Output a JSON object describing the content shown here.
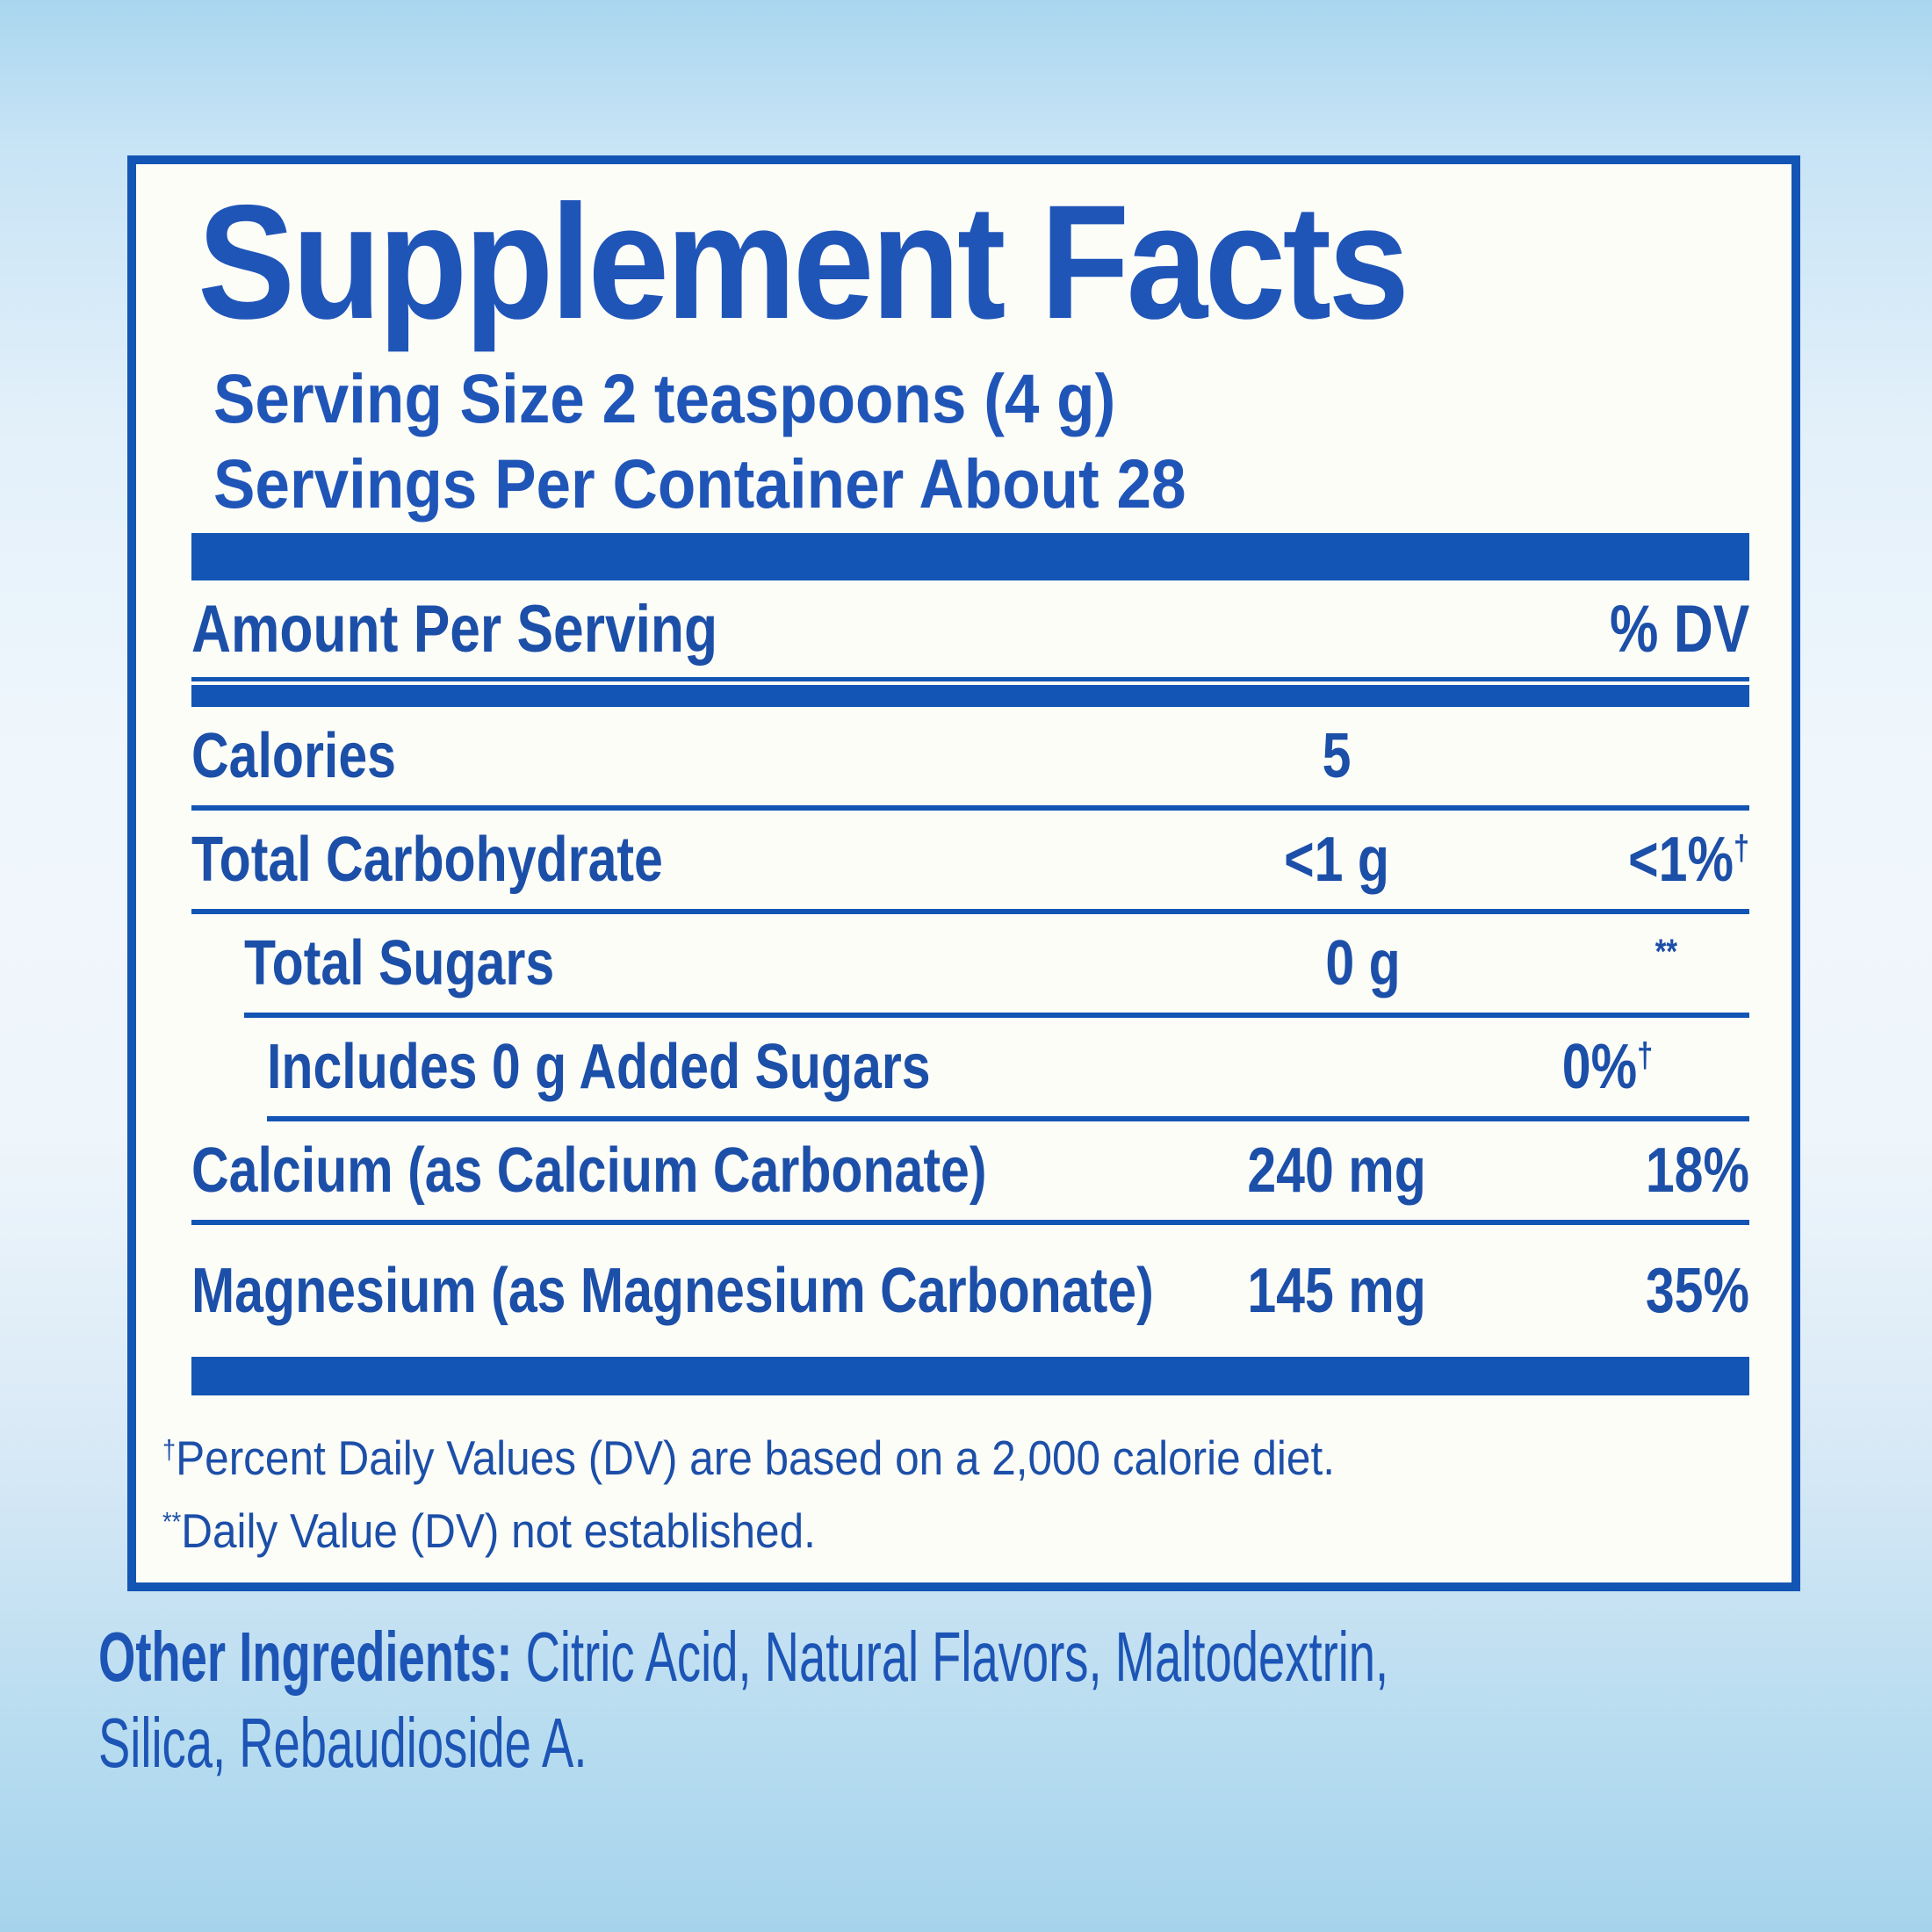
{
  "colors": {
    "accent_blue": "#1355b4",
    "text_blue": "#1c4fa8",
    "title_blue": "#2055b8",
    "panel_background": "#fdfdf8",
    "page_background_top": "#a9d6ef",
    "page_background_middle": "#f0f7fc",
    "page_background_bottom": "#a6d3ec"
  },
  "panel": {
    "title": "Supplement Facts",
    "serving_size_line": "Serving Size 2 teaspoons (4 g)",
    "servings_per_container_line": "Servings Per Container About 28",
    "header": {
      "amount_per_serving": "Amount Per Serving",
      "percent_dv": "% DV"
    },
    "rows": [
      {
        "label": "Calories",
        "amount": "5",
        "dv": "",
        "indent": 0
      },
      {
        "label": "Total Carbohydrate",
        "amount": "<1 g",
        "dv": "<1%",
        "dv_sup": "†",
        "indent": 0
      },
      {
        "label": "Total Sugars",
        "amount": "0 g",
        "dv": "",
        "dv_sup": "**",
        "indent": 1
      },
      {
        "label": "Includes 0 g Added Sugars",
        "amount": "",
        "dv": "0%",
        "dv_sup": "†",
        "indent": 2
      },
      {
        "label": "Calcium (as Calcium Carbonate)",
        "amount": "240 mg",
        "dv": "18%",
        "indent": 0
      },
      {
        "label": "Magnesium (as Magnesium Carbonate)",
        "amount": "145 mg",
        "dv": "35%",
        "indent": 0
      }
    ],
    "footnotes": [
      {
        "sup": "†",
        "text": "Percent Daily Values (DV) are based on a 2,000 calorie diet."
      },
      {
        "sup": "**",
        "text": "Daily Value (DV) not established."
      }
    ]
  },
  "other_ingredients": {
    "label": "Other Ingredients:",
    "line1_rest": " Citric Acid, Natural Flavors, Maltodextrin,",
    "line2": "Silica, Rebaudioside A."
  }
}
